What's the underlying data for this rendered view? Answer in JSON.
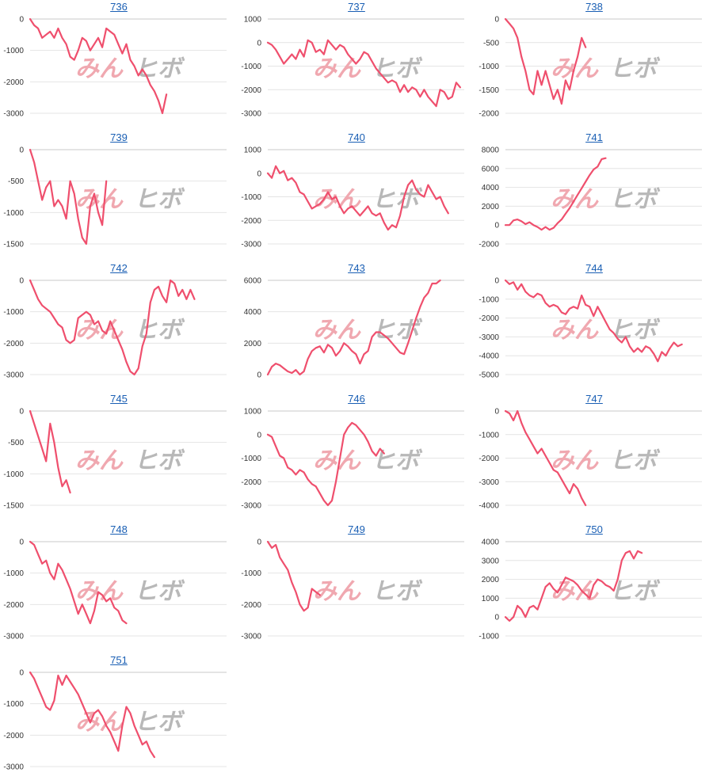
{
  "colors": {
    "line": "#ef4f6d",
    "grid": "#e4e4e4",
    "axis": "#c8c8c8",
    "title": "#1a5fb4"
  },
  "watermark": {
    "left": "みん",
    "right": "ヒボ"
  },
  "chart_data": [
    {
      "type": "line",
      "title": "736",
      "yticks": [
        0,
        -1000,
        -2000,
        -3000
      ],
      "ylim": [
        -3000,
        0
      ],
      "values": [
        0,
        -200,
        -300,
        -600,
        -500,
        -400,
        -600,
        -300,
        -600,
        -800,
        -1200,
        -1300,
        -1000,
        -600,
        -700,
        -1000,
        -800,
        -600,
        -900,
        -300,
        -400,
        -500,
        -800,
        -1100,
        -800,
        -1300,
        -1500,
        -1800,
        -1600,
        -1800,
        -2100,
        -2300,
        -2600,
        -3000,
        -2400
      ]
    },
    {
      "type": "line",
      "title": "737",
      "yticks": [
        1000,
        0,
        -1000,
        -2000,
        -3000
      ],
      "ylim": [
        -3000,
        1000
      ],
      "values": [
        0,
        -100,
        -300,
        -600,
        -900,
        -700,
        -500,
        -700,
        -300,
        -600,
        100,
        0,
        -400,
        -300,
        -500,
        100,
        -100,
        -300,
        -100,
        -200,
        -500,
        -700,
        -900,
        -700,
        -400,
        -500,
        -800,
        -1100,
        -1300,
        -1500,
        -1700,
        -1600,
        -1700,
        -2100,
        -1800,
        -2100,
        -1900,
        -2000,
        -2300,
        -2000,
        -2300,
        -2500,
        -2700,
        -2000,
        -2100,
        -2400,
        -2300,
        -1700,
        -1900
      ]
    },
    {
      "type": "line",
      "title": "738",
      "yticks": [
        0,
        -500,
        -1000,
        -1500,
        -2000
      ],
      "ylim": [
        -2000,
        0
      ],
      "values": [
        0,
        -100,
        -200,
        -400,
        -800,
        -1100,
        -1500,
        -1600,
        -1100,
        -1400,
        -1100,
        -1400,
        -1700,
        -1500,
        -1800,
        -1300,
        -1500,
        -1100,
        -800,
        -400,
        -600
      ]
    },
    {
      "type": "line",
      "title": "739",
      "yticks": [
        0,
        -500,
        -1000,
        -1500
      ],
      "ylim": [
        -1500,
        0
      ],
      "values": [
        0,
        -200,
        -500,
        -800,
        -600,
        -500,
        -900,
        -800,
        -900,
        -1100,
        -500,
        -700,
        -1100,
        -1400,
        -1500,
        -900,
        -700,
        -1000,
        -1200,
        -500
      ]
    },
    {
      "type": "line",
      "title": "740",
      "yticks": [
        1000,
        0,
        -1000,
        -2000,
        -3000
      ],
      "ylim": [
        -3000,
        1000
      ],
      "values": [
        0,
        -200,
        300,
        0,
        100,
        -300,
        -200,
        -400,
        -800,
        -900,
        -1200,
        -1500,
        -1400,
        -1300,
        -1100,
        -800,
        -1100,
        -1000,
        -1400,
        -1700,
        -1500,
        -1400,
        -1600,
        -1800,
        -1600,
        -1400,
        -1700,
        -1800,
        -1700,
        -2100,
        -2400,
        -2200,
        -2300,
        -1800,
        -1000,
        -500,
        -300,
        -700,
        -900,
        -1000,
        -500,
        -800,
        -1100,
        -1000,
        -1400,
        -1700
      ]
    },
    {
      "type": "line",
      "title": "741",
      "yticks": [
        8000,
        6000,
        4000,
        2000,
        0,
        -2000
      ],
      "ylim": [
        -2000,
        8000
      ],
      "values": [
        0,
        0,
        500,
        600,
        400,
        100,
        300,
        0,
        -200,
        -500,
        -200,
        -500,
        -300,
        200,
        600,
        1200,
        1800,
        2500,
        3200,
        3900,
        4600,
        5300,
        5900,
        6200,
        7000,
        7100
      ]
    },
    {
      "type": "line",
      "title": "742",
      "yticks": [
        0,
        -1000,
        -2000,
        -3000
      ],
      "ylim": [
        -3000,
        0
      ],
      "values": [
        0,
        -300,
        -600,
        -800,
        -900,
        -1000,
        -1200,
        -1400,
        -1500,
        -1900,
        -2000,
        -1900,
        -1200,
        -1100,
        -1000,
        -1100,
        -1400,
        -1300,
        -1600,
        -1700,
        -1300,
        -1600,
        -1900,
        -2200,
        -2600,
        -2900,
        -3000,
        -2800,
        -2100,
        -1700,
        -700,
        -300,
        -200,
        -500,
        -700,
        0,
        -100,
        -500,
        -300,
        -600,
        -300,
        -600
      ]
    },
    {
      "type": "line",
      "title": "743",
      "yticks": [
        6000,
        4000,
        2000,
        0
      ],
      "ylim": [
        0,
        6000
      ],
      "values": [
        0,
        500,
        700,
        600,
        400,
        200,
        100,
        300,
        0,
        200,
        1000,
        1500,
        1700,
        1800,
        1400,
        1900,
        1700,
        1200,
        1500,
        2000,
        1800,
        1500,
        1300,
        700,
        1300,
        1500,
        2400,
        2700,
        2700,
        2500,
        2300,
        2000,
        1700,
        1400,
        1300,
        2000,
        2800,
        3600,
        4300,
        4900,
        5200,
        5800,
        5800,
        6000
      ]
    },
    {
      "type": "line",
      "title": "744",
      "yticks": [
        0,
        -1000,
        -2000,
        -3000,
        -4000,
        -5000
      ],
      "ylim": [
        -5000,
        0
      ],
      "values": [
        0,
        -200,
        -100,
        -500,
        -200,
        -600,
        -800,
        -900,
        -700,
        -800,
        -1200,
        -1400,
        -1300,
        -1400,
        -1700,
        -1800,
        -1500,
        -1400,
        -1500,
        -800,
        -1300,
        -1400,
        -1900,
        -1400,
        -1800,
        -2200,
        -2600,
        -2800,
        -3100,
        -3300,
        -3000,
        -3500,
        -3800,
        -3600,
        -3800,
        -3500,
        -3600,
        -3900,
        -4300,
        -3800,
        -4000,
        -3600,
        -3300,
        -3500,
        -3400
      ]
    },
    {
      "type": "line",
      "title": "745",
      "yticks": [
        0,
        -500,
        -1000,
        -1500
      ],
      "ylim": [
        -1500,
        0
      ],
      "values": [
        0,
        -200,
        -400,
        -600,
        -800,
        -200,
        -500,
        -900,
        -1200,
        -1100,
        -1300
      ]
    },
    {
      "type": "line",
      "title": "746",
      "yticks": [
        1000,
        0,
        -1000,
        -2000,
        -3000
      ],
      "ylim": [
        -3000,
        1000
      ],
      "values": [
        0,
        -100,
        -500,
        -900,
        -1000,
        -1400,
        -1500,
        -1700,
        -1500,
        -1600,
        -1900,
        -2100,
        -2200,
        -2500,
        -2800,
        -3000,
        -2800,
        -2000,
        -1000,
        0,
        300,
        500,
        400,
        200,
        0,
        -300,
        -700,
        -900,
        -600,
        -800
      ]
    },
    {
      "type": "line",
      "title": "747",
      "yticks": [
        0,
        -1000,
        -2000,
        -3000,
        -4000
      ],
      "ylim": [
        -4000,
        0
      ],
      "values": [
        0,
        -100,
        -400,
        0,
        -500,
        -900,
        -1200,
        -1500,
        -1800,
        -1600,
        -1900,
        -2200,
        -2500,
        -2600,
        -2900,
        -3200,
        -3500,
        -3100,
        -3300,
        -3700,
        -4000
      ]
    },
    {
      "type": "line",
      "title": "748",
      "yticks": [
        0,
        -1000,
        -2000,
        -3000
      ],
      "ylim": [
        -3000,
        0
      ],
      "values": [
        0,
        -100,
        -400,
        -700,
        -600,
        -1000,
        -1200,
        -700,
        -900,
        -1200,
        -1500,
        -1900,
        -2300,
        -2000,
        -2300,
        -2600,
        -2200,
        -1600,
        -1700,
        -1900,
        -1800,
        -2100,
        -2200,
        -2500,
        -2600
      ]
    },
    {
      "type": "line",
      "title": "749",
      "yticks": [
        0,
        -1000,
        -2000,
        -3000
      ],
      "ylim": [
        -3000,
        0
      ],
      "values": [
        0,
        -200,
        -100,
        -500,
        -700,
        -900,
        -1300,
        -1600,
        -2000,
        -2200,
        -2100,
        -1500,
        -1600,
        -1700
      ]
    },
    {
      "type": "line",
      "title": "750",
      "yticks": [
        4000,
        3000,
        2000,
        1000,
        0,
        -1000
      ],
      "ylim": [
        -1000,
        4000
      ],
      "values": [
        0,
        -200,
        0,
        600,
        400,
        0,
        500,
        600,
        400,
        1000,
        1600,
        1800,
        1500,
        1300,
        1700,
        2100,
        2000,
        1900,
        1700,
        1400,
        1200,
        1000,
        1700,
        2000,
        1900,
        1700,
        1600,
        1400,
        2000,
        3000,
        3400,
        3500,
        3100,
        3500,
        3400
      ]
    },
    {
      "type": "line",
      "title": "751",
      "yticks": [
        0,
        -1000,
        -2000,
        -3000
      ],
      "ylim": [
        -3000,
        0
      ],
      "values": [
        0,
        -200,
        -500,
        -800,
        -1100,
        -1200,
        -900,
        -100,
        -400,
        -100,
        -300,
        -500,
        -700,
        -1000,
        -1300,
        -1600,
        -1300,
        -1200,
        -1400,
        -1700,
        -1900,
        -2200,
        -2500,
        -1700,
        -1100,
        -1300,
        -1700,
        -2000,
        -2300,
        -2200,
        -2500,
        -2700
      ]
    }
  ]
}
